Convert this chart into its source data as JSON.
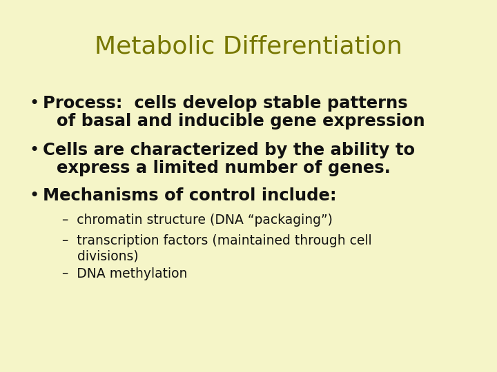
{
  "background_color": "#f5f5c8",
  "title": "Metabolic Differentiation",
  "title_color": "#777700",
  "title_fontsize": 26,
  "title_fontstyle": "normal",
  "title_fontweight": "normal",
  "bullet_color": "#111111",
  "bullet_fontsize": 17.5,
  "sub_fontsize": 13.5,
  "bullet_char": "•",
  "bullets": [
    [
      "Process:  cells develop stable patterns",
      "of basal and inducible gene expression"
    ],
    [
      "Cells are characterized by the ability to",
      "express a limited number of genes."
    ],
    [
      "Mechanisms of control include:"
    ]
  ],
  "sub_bullets": [
    [
      "–  chromatin structure (DNA “packaging”)"
    ],
    [
      "–  transcription factors (maintained through cell",
      "   divisions)"
    ],
    [
      "–  DNA methylation"
    ]
  ]
}
